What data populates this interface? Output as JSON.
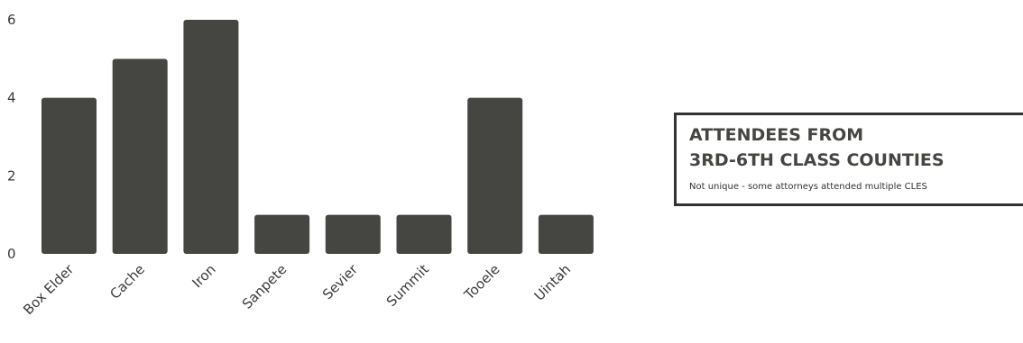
{
  "chart_data": {
    "type": "bar",
    "categories": [
      "Box Elder",
      "Cache",
      "Iron",
      "Sanpete",
      "Sevier",
      "Summit",
      "Tooele",
      "Uintah"
    ],
    "values": [
      4,
      5,
      6,
      1,
      1,
      1,
      4,
      1
    ],
    "yticks": [
      "0",
      "2",
      "4",
      "6"
    ],
    "ylim": [
      0,
      6
    ],
    "bar_color": "#454541",
    "grid": false,
    "legend": {
      "title_line1": "ATTENDEES FROM",
      "title_line2": "3RD-6TH CLASS COUNTIES",
      "note": "Not unique - some attorneys attended multiple CLES"
    }
  }
}
